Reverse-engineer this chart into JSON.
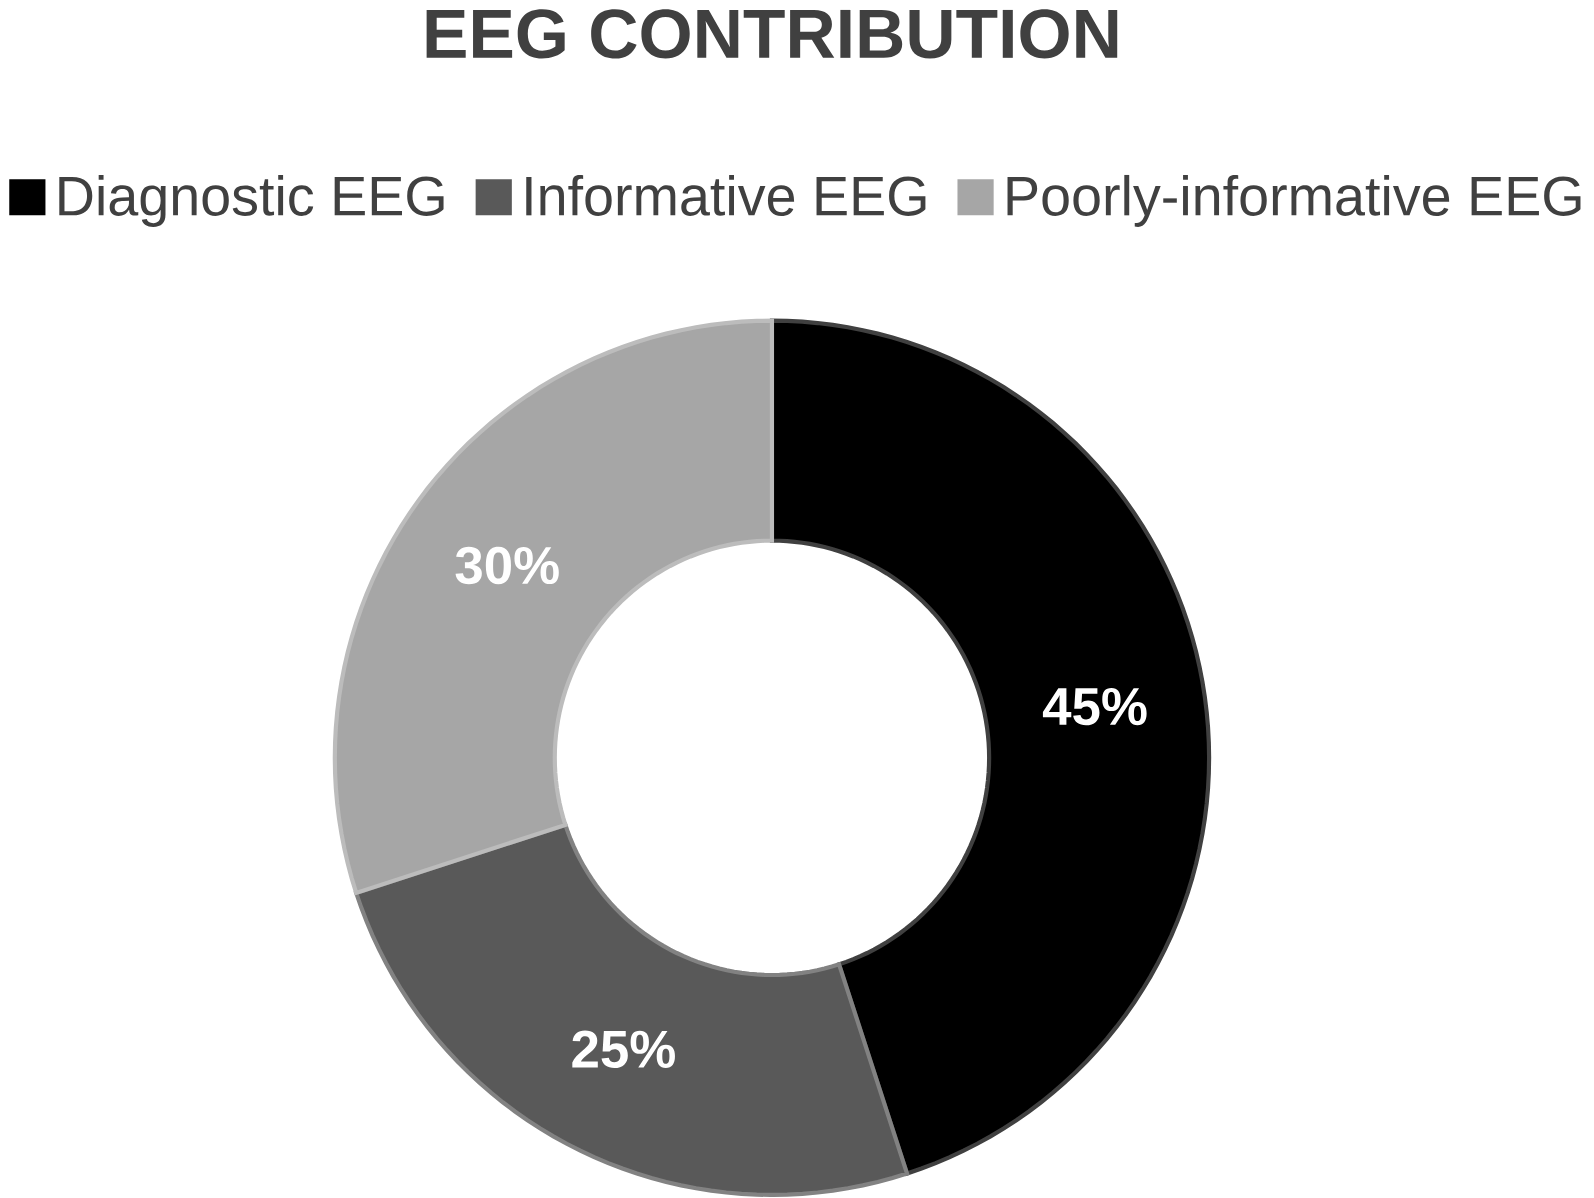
{
  "chart_data": {
    "type": "donut",
    "title": "EEG CONTRIBUTION",
    "categories": [
      "Diagnostic EEG",
      "Informative EEG",
      "Poorly-informative EEG"
    ],
    "values": [
      45,
      25,
      30
    ],
    "colors": [
      "#000000",
      "#595959",
      "#a6a6a6"
    ],
    "value_labels": [
      "45%",
      "25%",
      "30%"
    ],
    "legend": "top"
  }
}
